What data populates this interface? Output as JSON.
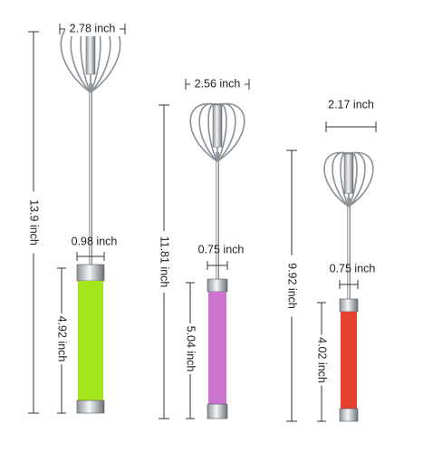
{
  "whisks": [
    {
      "head_width": "2.78 inch",
      "total_length": "13.9 inch",
      "handle_width": "0.98 inch",
      "handle_length": "4.92 inch"
    },
    {
      "head_width": "2.56 inch",
      "total_length": "11.81 inch",
      "handle_width": "0.75 inch",
      "handle_length": "5.04 inch"
    },
    {
      "head_width": "2.17 inch",
      "total_length": "9.92 inch",
      "handle_width": "0.75 inch",
      "handle_length": "4.02 inch"
    }
  ]
}
